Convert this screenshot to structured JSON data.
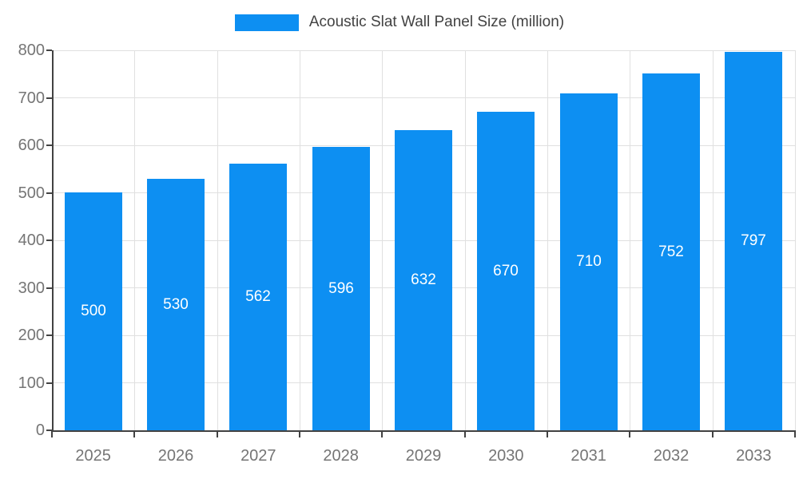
{
  "chart_data": {
    "type": "bar",
    "title": "Acoustic Slat Wall Panel Size (million)",
    "categories": [
      "2025",
      "2026",
      "2027",
      "2028",
      "2029",
      "2030",
      "2031",
      "2032",
      "2033"
    ],
    "values": [
      500,
      530,
      562,
      596,
      632,
      670,
      710,
      752,
      797
    ],
    "xlabel": "",
    "ylabel": "",
    "ylim": [
      0,
      800
    ],
    "yticks": [
      0,
      100,
      200,
      300,
      400,
      500,
      600,
      700,
      800
    ],
    "grid": true,
    "legend_position": "top",
    "bar_color": "#0d8ff2",
    "value_label_color": "#ffffff",
    "tick_label_color": "#757575",
    "axis_color": "#424242",
    "gridline_color": "#e0e0e0"
  }
}
